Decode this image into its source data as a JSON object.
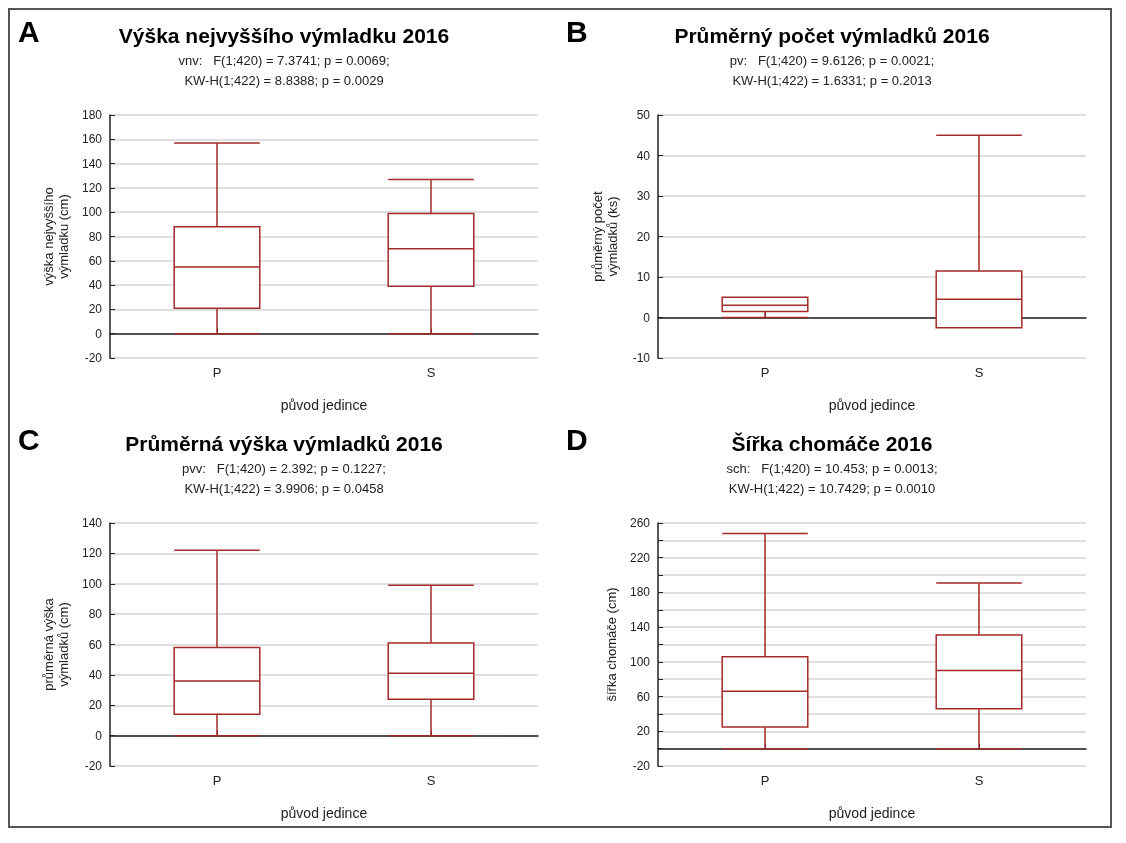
{
  "chart_data": [
    {
      "type": "box",
      "title": "Výška nejvyššího výmladku 2016",
      "annotations": [
        "A",
        "vnv:   F(1;420) = 7.3741; p = 0.0069;",
        "KW-H(1;422) = 8.8388; p = 0.0029"
      ],
      "xlabel": "původ jedince",
      "ylabel": "výška nejvyššího\nvýmladku (cm)",
      "categories": [
        "P",
        "S"
      ],
      "color": "#a52a2a",
      "boxes": [
        {
          "low": 0,
          "q1": 21,
          "median": 55,
          "q3": 88,
          "high": 157
        },
        {
          "low": 0,
          "q1": 39,
          "median": 70,
          "q3": 99,
          "high": 127
        }
      ],
      "ylim": [
        -20,
        180
      ],
      "yticks": [
        -20,
        0,
        20,
        40,
        60,
        80,
        100,
        120,
        140,
        160,
        180
      ],
      "grid": "y"
    },
    {
      "type": "box",
      "title": "Průměrný počet výmladků 2016",
      "annotations": [
        "B",
        "pv:   F(1;420) = 9.6126; p = 0.0021;",
        "KW-H(1;422) = 1.6331; p = 0.2013"
      ],
      "xlabel": "původ jedince",
      "ylabel": "průměrný počet\nvýmladků (ks)",
      "categories": [
        "P",
        "S"
      ],
      "color": "#a52a2a",
      "boxes": [
        {
          "low": 0,
          "q1": 1.5,
          "median": 3,
          "q3": 5,
          "high": 5
        },
        {
          "low": -2.5,
          "q1": -2.5,
          "median": 4.5,
          "q3": 11.5,
          "high": 45
        }
      ],
      "ylim": [
        -10,
        50
      ],
      "yticks": [
        -10,
        0,
        10,
        20,
        30,
        40,
        50
      ],
      "grid": "y"
    },
    {
      "type": "box",
      "title": "Průměrná výška výmladků 2016",
      "annotations": [
        "C",
        "pvv:   F(1;420) = 2.392; p = 0.1227;",
        "KW-H(1;422) = 3.9906; p = 0.0458"
      ],
      "xlabel": "původ jedince",
      "ylabel": "průměrná výška\nvýmladků (cm)",
      "categories": [
        "P",
        "S"
      ],
      "color": "#a52a2a",
      "boxes": [
        {
          "low": 0,
          "q1": 14,
          "median": 36,
          "q3": 58,
          "high": 122
        },
        {
          "low": 0,
          "q1": 24,
          "median": 41,
          "q3": 61,
          "high": 99
        }
      ],
      "ylim": [
        -20,
        140
      ],
      "yticks": [
        -20,
        0,
        20,
        40,
        60,
        80,
        100,
        120,
        140
      ],
      "grid": "y"
    },
    {
      "type": "box",
      "title": "Šířka chomáče 2016",
      "annotations": [
        "D",
        "sch:   F(1;420) = 10.453; p = 0.0013;",
        "KW-H(1;422) = 10.7429; p = 0.0010"
      ],
      "xlabel": "původ jedince",
      "ylabel": "šířka chomáče (cm)",
      "categories": [
        "P",
        "S"
      ],
      "color": "#a52a2a",
      "boxes": [
        {
          "low": 0,
          "q1": 25,
          "median": 66,
          "q3": 106,
          "high": 248
        },
        {
          "low": 0,
          "q1": 46,
          "median": 90,
          "q3": 131,
          "high": 191
        }
      ],
      "ylim": [
        -20,
        260
      ],
      "yticks": [
        -20,
        {
          "value": 0,
          "label": null
        },
        20,
        {
          "value": 40,
          "label": null
        },
        60,
        {
          "value": 80,
          "label": null
        },
        100,
        {
          "value": 120,
          "label": null
        },
        140,
        {
          "value": 160,
          "label": null
        },
        180,
        {
          "value": 200,
          "label": null
        },
        220,
        {
          "value": 240,
          "label": null
        },
        260
      ],
      "grid": "y"
    }
  ]
}
